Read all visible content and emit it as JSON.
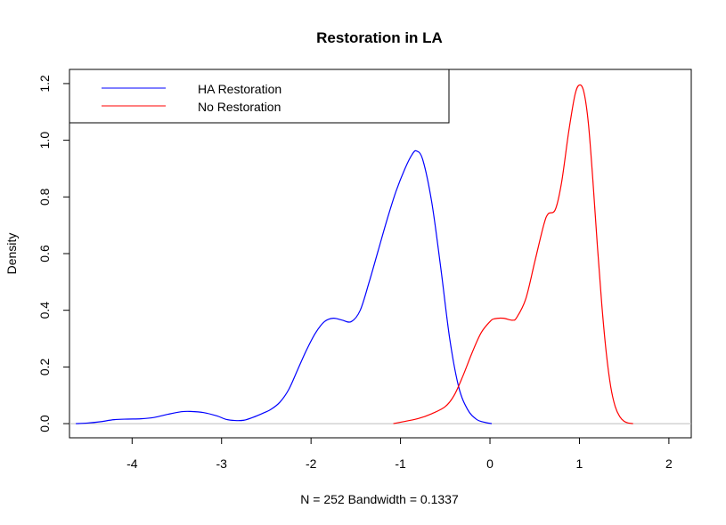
{
  "chart_data": {
    "type": "line",
    "title": "Restoration in LA",
    "xlabel": "N = 252   Bandwidth = 0.1337",
    "ylabel": "Density",
    "xlim": [
      -4.7,
      2.25
    ],
    "ylim": [
      -0.05,
      1.25
    ],
    "x_ticks": [
      -4,
      -3,
      -2,
      -1,
      0,
      1,
      2
    ],
    "y_ticks": [
      0.0,
      0.2,
      0.4,
      0.6,
      0.8,
      1.0,
      1.2
    ],
    "x_tick_labels": [
      "-4",
      "-3",
      "-2",
      "-1",
      "0",
      "1",
      "2"
    ],
    "y_tick_labels": [
      "0.0",
      "0.2",
      "0.4",
      "0.6",
      "0.8",
      "1.0",
      "1.2"
    ],
    "baseline": 0,
    "grid": false,
    "legend_position": "top-left",
    "series": [
      {
        "name": "HA Restoration",
        "color": "#0000ff",
        "points": [
          [
            -4.63,
            0.0
          ],
          [
            -4.5,
            0.002
          ],
          [
            -4.35,
            0.007
          ],
          [
            -4.2,
            0.014
          ],
          [
            -4.05,
            0.016
          ],
          [
            -3.9,
            0.017
          ],
          [
            -3.75,
            0.022
          ],
          [
            -3.6,
            0.033
          ],
          [
            -3.45,
            0.042
          ],
          [
            -3.35,
            0.043
          ],
          [
            -3.2,
            0.039
          ],
          [
            -3.05,
            0.027
          ],
          [
            -2.95,
            0.015
          ],
          [
            -2.85,
            0.011
          ],
          [
            -2.75,
            0.012
          ],
          [
            -2.65,
            0.022
          ],
          [
            -2.55,
            0.035
          ],
          [
            -2.45,
            0.05
          ],
          [
            -2.35,
            0.075
          ],
          [
            -2.25,
            0.12
          ],
          [
            -2.15,
            0.19
          ],
          [
            -2.05,
            0.26
          ],
          [
            -1.95,
            0.32
          ],
          [
            -1.85,
            0.36
          ],
          [
            -1.75,
            0.372
          ],
          [
            -1.65,
            0.365
          ],
          [
            -1.55,
            0.36
          ],
          [
            -1.45,
            0.4
          ],
          [
            -1.35,
            0.5
          ],
          [
            -1.25,
            0.61
          ],
          [
            -1.15,
            0.72
          ],
          [
            -1.05,
            0.82
          ],
          [
            -0.95,
            0.9
          ],
          [
            -0.87,
            0.95
          ],
          [
            -0.82,
            0.962
          ],
          [
            -0.75,
            0.93
          ],
          [
            -0.65,
            0.78
          ],
          [
            -0.55,
            0.55
          ],
          [
            -0.45,
            0.3
          ],
          [
            -0.35,
            0.13
          ],
          [
            -0.25,
            0.05
          ],
          [
            -0.15,
            0.015
          ],
          [
            -0.05,
            0.004
          ],
          [
            0.02,
            0.0
          ]
        ]
      },
      {
        "name": "No Restoration",
        "color": "#ff0000",
        "points": [
          [
            -1.08,
            0.0
          ],
          [
            -0.95,
            0.008
          ],
          [
            -0.8,
            0.018
          ],
          [
            -0.65,
            0.035
          ],
          [
            -0.5,
            0.06
          ],
          [
            -0.4,
            0.1
          ],
          [
            -0.3,
            0.17
          ],
          [
            -0.2,
            0.25
          ],
          [
            -0.1,
            0.32
          ],
          [
            0.0,
            0.36
          ],
          [
            0.05,
            0.37
          ],
          [
            0.15,
            0.372
          ],
          [
            0.25,
            0.365
          ],
          [
            0.3,
            0.375
          ],
          [
            0.4,
            0.44
          ],
          [
            0.5,
            0.57
          ],
          [
            0.6,
            0.7
          ],
          [
            0.65,
            0.74
          ],
          [
            0.73,
            0.755
          ],
          [
            0.8,
            0.85
          ],
          [
            0.88,
            1.03
          ],
          [
            0.95,
            1.16
          ],
          [
            1.0,
            1.195
          ],
          [
            1.05,
            1.17
          ],
          [
            1.1,
            1.06
          ],
          [
            1.15,
            0.86
          ],
          [
            1.2,
            0.63
          ],
          [
            1.25,
            0.42
          ],
          [
            1.3,
            0.25
          ],
          [
            1.35,
            0.13
          ],
          [
            1.4,
            0.06
          ],
          [
            1.45,
            0.025
          ],
          [
            1.5,
            0.008
          ],
          [
            1.55,
            0.002
          ],
          [
            1.6,
            0.0
          ]
        ]
      }
    ]
  }
}
